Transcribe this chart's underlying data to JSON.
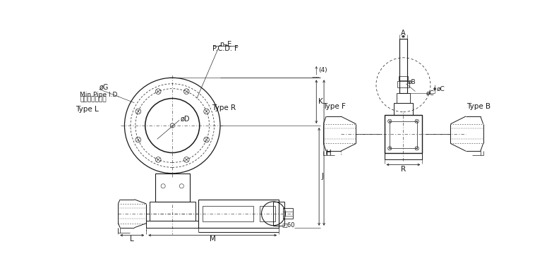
{
  "bg": "#ffffff",
  "lc": "#1a1a1a",
  "dc": "#1a1a1a",
  "labels": {
    "nE": "n–E",
    "pcd": "P.C.D. F",
    "phiG": "øG",
    "minPipeEN": "Min.Pipe I.D.",
    "minPipeJP": "接続管最小内径",
    "phiD": "øD",
    "typeL": "Type L",
    "typeR": "Type R",
    "typeF": "Type F",
    "typeB": "Type B",
    "dim4": "(4)",
    "dimK": "K",
    "dimH": "H",
    "dimJ": "J",
    "dimL": "L",
    "dimM": "M",
    "dimR": "R",
    "dimA": "A",
    "dimB": "øB",
    "dimC": "øC",
    "box60": "□60"
  }
}
